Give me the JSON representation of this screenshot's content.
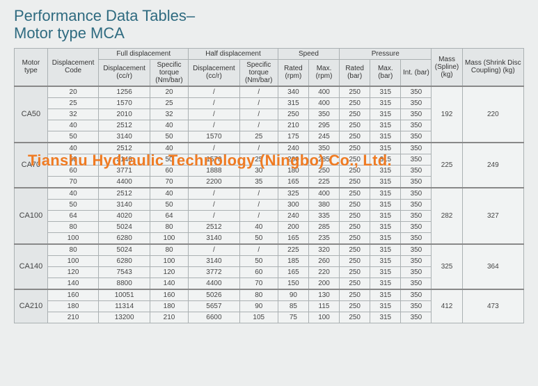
{
  "title": {
    "line1": "Performance Data Tables–",
    "line2": "Motor type MCA"
  },
  "table": {
    "header": {
      "motor_type": "Motor type",
      "disp_code": "Displacement Code",
      "full_disp": "Full displacement",
      "half_disp": "Half displacement",
      "speed": "Speed",
      "pressure": "Pressure",
      "mass_spline": "Mass (Spline) (kg)",
      "mass_shrink": "Mass (Shrink Disc Coupling) (kg)",
      "disp_ccr": "Displacement (cc/r)",
      "spec_torque": "Specific torque (Nm/bar)",
      "rated_rpm": "Rated (rpm)",
      "max_rpm": "Max. (rpm)",
      "rated_bar": "Rated (bar)",
      "max_bar": "Max. (bar)",
      "int_bar": "Int. (bar)"
    },
    "groups": [
      {
        "motor_type": "CA50",
        "mass_spline": "192",
        "mass_shrink": "220",
        "rows": [
          {
            "code": "20",
            "fd": "1256",
            "ft": "20",
            "hd": "/",
            "ht": "/",
            "rr": "340",
            "mr": "400",
            "rb": "250",
            "mb": "315",
            "ib": "350"
          },
          {
            "code": "25",
            "fd": "1570",
            "ft": "25",
            "hd": "/",
            "ht": "/",
            "rr": "315",
            "mr": "400",
            "rb": "250",
            "mb": "315",
            "ib": "350"
          },
          {
            "code": "32",
            "fd": "2010",
            "ft": "32",
            "hd": "/",
            "ht": "/",
            "rr": "250",
            "mr": "350",
            "rb": "250",
            "mb": "315",
            "ib": "350"
          },
          {
            "code": "40",
            "fd": "2512",
            "ft": "40",
            "hd": "/",
            "ht": "/",
            "rr": "210",
            "mr": "295",
            "rb": "250",
            "mb": "315",
            "ib": "350"
          },
          {
            "code": "50",
            "fd": "3140",
            "ft": "50",
            "hd": "1570",
            "ht": "25",
            "rr": "175",
            "mr": "245",
            "rb": "250",
            "mb": "315",
            "ib": "350"
          }
        ]
      },
      {
        "motor_type": "CA70",
        "mass_spline": "225",
        "mass_shrink": "249",
        "rows": [
          {
            "code": "40",
            "fd": "2512",
            "ft": "40",
            "hd": "/",
            "ht": "/",
            "rr": "240",
            "mr": "350",
            "rb": "250",
            "mb": "315",
            "ib": "350"
          },
          {
            "code": "50",
            "fd": "3140",
            "ft": "50",
            "hd": "1570",
            "ht": "25",
            "rr": "200",
            "mr": "285",
            "rb": "250",
            "mb": "315",
            "ib": "350"
          },
          {
            "code": "60",
            "fd": "3771",
            "ft": "60",
            "hd": "1888",
            "ht": "30",
            "rr": "180",
            "mr": "250",
            "rb": "250",
            "mb": "315",
            "ib": "350"
          },
          {
            "code": "70",
            "fd": "4400",
            "ft": "70",
            "hd": "2200",
            "ht": "35",
            "rr": "165",
            "mr": "225",
            "rb": "250",
            "mb": "315",
            "ib": "350"
          }
        ]
      },
      {
        "motor_type": "CA100",
        "mass_spline": "282",
        "mass_shrink": "327",
        "rows": [
          {
            "code": "40",
            "fd": "2512",
            "ft": "40",
            "hd": "/",
            "ht": "/",
            "rr": "325",
            "mr": "400",
            "rb": "250",
            "mb": "315",
            "ib": "350"
          },
          {
            "code": "50",
            "fd": "3140",
            "ft": "50",
            "hd": "/",
            "ht": "/",
            "rr": "300",
            "mr": "380",
            "rb": "250",
            "mb": "315",
            "ib": "350"
          },
          {
            "code": "64",
            "fd": "4020",
            "ft": "64",
            "hd": "/",
            "ht": "/",
            "rr": "240",
            "mr": "335",
            "rb": "250",
            "mb": "315",
            "ib": "350"
          },
          {
            "code": "80",
            "fd": "5024",
            "ft": "80",
            "hd": "2512",
            "ht": "40",
            "rr": "200",
            "mr": "285",
            "rb": "250",
            "mb": "315",
            "ib": "350"
          },
          {
            "code": "100",
            "fd": "6280",
            "ft": "100",
            "hd": "3140",
            "ht": "50",
            "rr": "165",
            "mr": "235",
            "rb": "250",
            "mb": "315",
            "ib": "350"
          }
        ]
      },
      {
        "motor_type": "CA140",
        "mass_spline": "325",
        "mass_shrink": "364",
        "rows": [
          {
            "code": "80",
            "fd": "5024",
            "ft": "80",
            "hd": "/",
            "ht": "/",
            "rr": "225",
            "mr": "320",
            "rb": "250",
            "mb": "315",
            "ib": "350"
          },
          {
            "code": "100",
            "fd": "6280",
            "ft": "100",
            "hd": "3140",
            "ht": "50",
            "rr": "185",
            "mr": "260",
            "rb": "250",
            "mb": "315",
            "ib": "350"
          },
          {
            "code": "120",
            "fd": "7543",
            "ft": "120",
            "hd": "3772",
            "ht": "60",
            "rr": "165",
            "mr": "220",
            "rb": "250",
            "mb": "315",
            "ib": "350"
          },
          {
            "code": "140",
            "fd": "8800",
            "ft": "140",
            "hd": "4400",
            "ht": "70",
            "rr": "150",
            "mr": "200",
            "rb": "250",
            "mb": "315",
            "ib": "350"
          }
        ]
      },
      {
        "motor_type": "CA210",
        "mass_spline": "412",
        "mass_shrink": "473",
        "rows": [
          {
            "code": "160",
            "fd": "10051",
            "ft": "160",
            "hd": "5026",
            "ht": "80",
            "rr": "90",
            "mr": "130",
            "rb": "250",
            "mb": "315",
            "ib": "350"
          },
          {
            "code": "180",
            "fd": "11314",
            "ft": "180",
            "hd": "5657",
            "ht": "90",
            "rr": "85",
            "mr": "115",
            "rb": "250",
            "mb": "315",
            "ib": "350"
          },
          {
            "code": "210",
            "fd": "13200",
            "ft": "210",
            "hd": "6600",
            "ht": "105",
            "rr": "75",
            "mr": "100",
            "rb": "250",
            "mb": "315",
            "ib": "350"
          }
        ]
      }
    ]
  },
  "watermark": "Tianshu Hydraulic Technology (Ningbo) Co., Ltd.",
  "colors": {
    "title": "#2f6b80",
    "border": "#aab0b2",
    "watermark": "#ef7b23",
    "bg": "#eceeee"
  },
  "col_widths_pct": [
    6.5,
    10,
    10,
    7.5,
    10,
    7.5,
    6,
    6,
    6,
    6,
    6,
    6,
    12
  ]
}
